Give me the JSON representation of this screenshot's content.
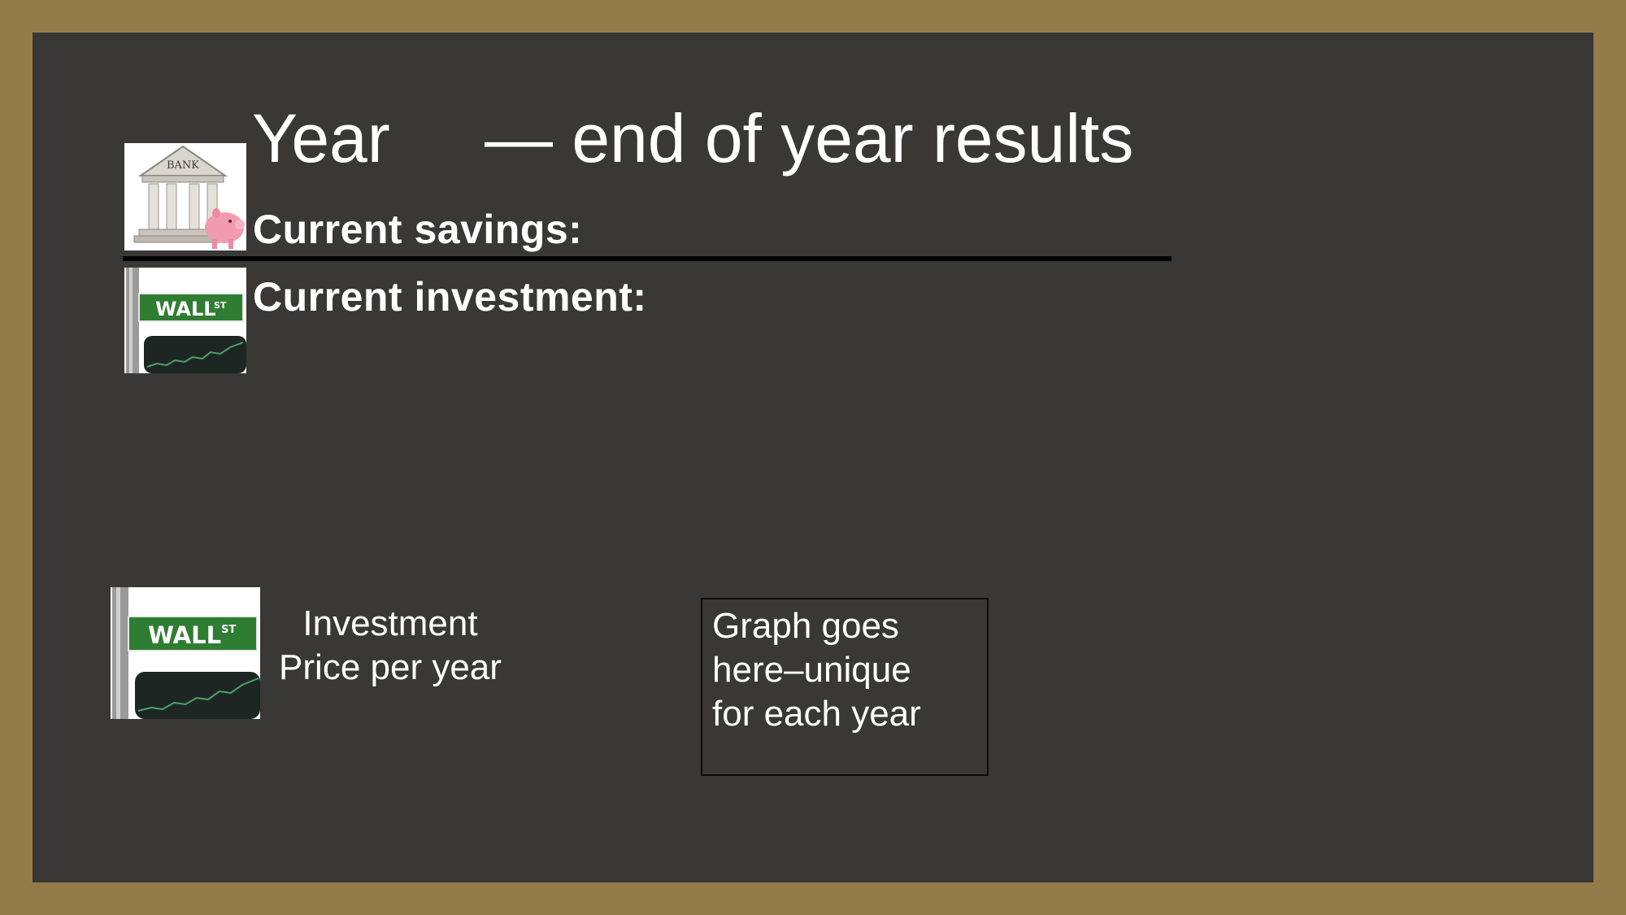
{
  "header": {
    "title_year": "Year",
    "title_rest": "— end of year results"
  },
  "summary": {
    "savings_label": "Current savings:",
    "investment_label": "Current investment:"
  },
  "price": {
    "label_line1": "Investment",
    "label_line2": "Price per year"
  },
  "graph_placeholder": {
    "line1": "Graph goes",
    "line2": "here–unique",
    "line3": "for each year"
  },
  "icons": {
    "bank": "bank-icon",
    "wall_street": "wall-street-sign-icon",
    "bank_sign_text": "BANK",
    "wall_sign_text": "WALL",
    "wall_sign_suffix": "ST"
  },
  "colors": {
    "frame": "#947b4a",
    "background": "#393837",
    "text": "#ffffff",
    "sign_green": "#2f7d32",
    "piggy_pink": "#f29bb0"
  }
}
